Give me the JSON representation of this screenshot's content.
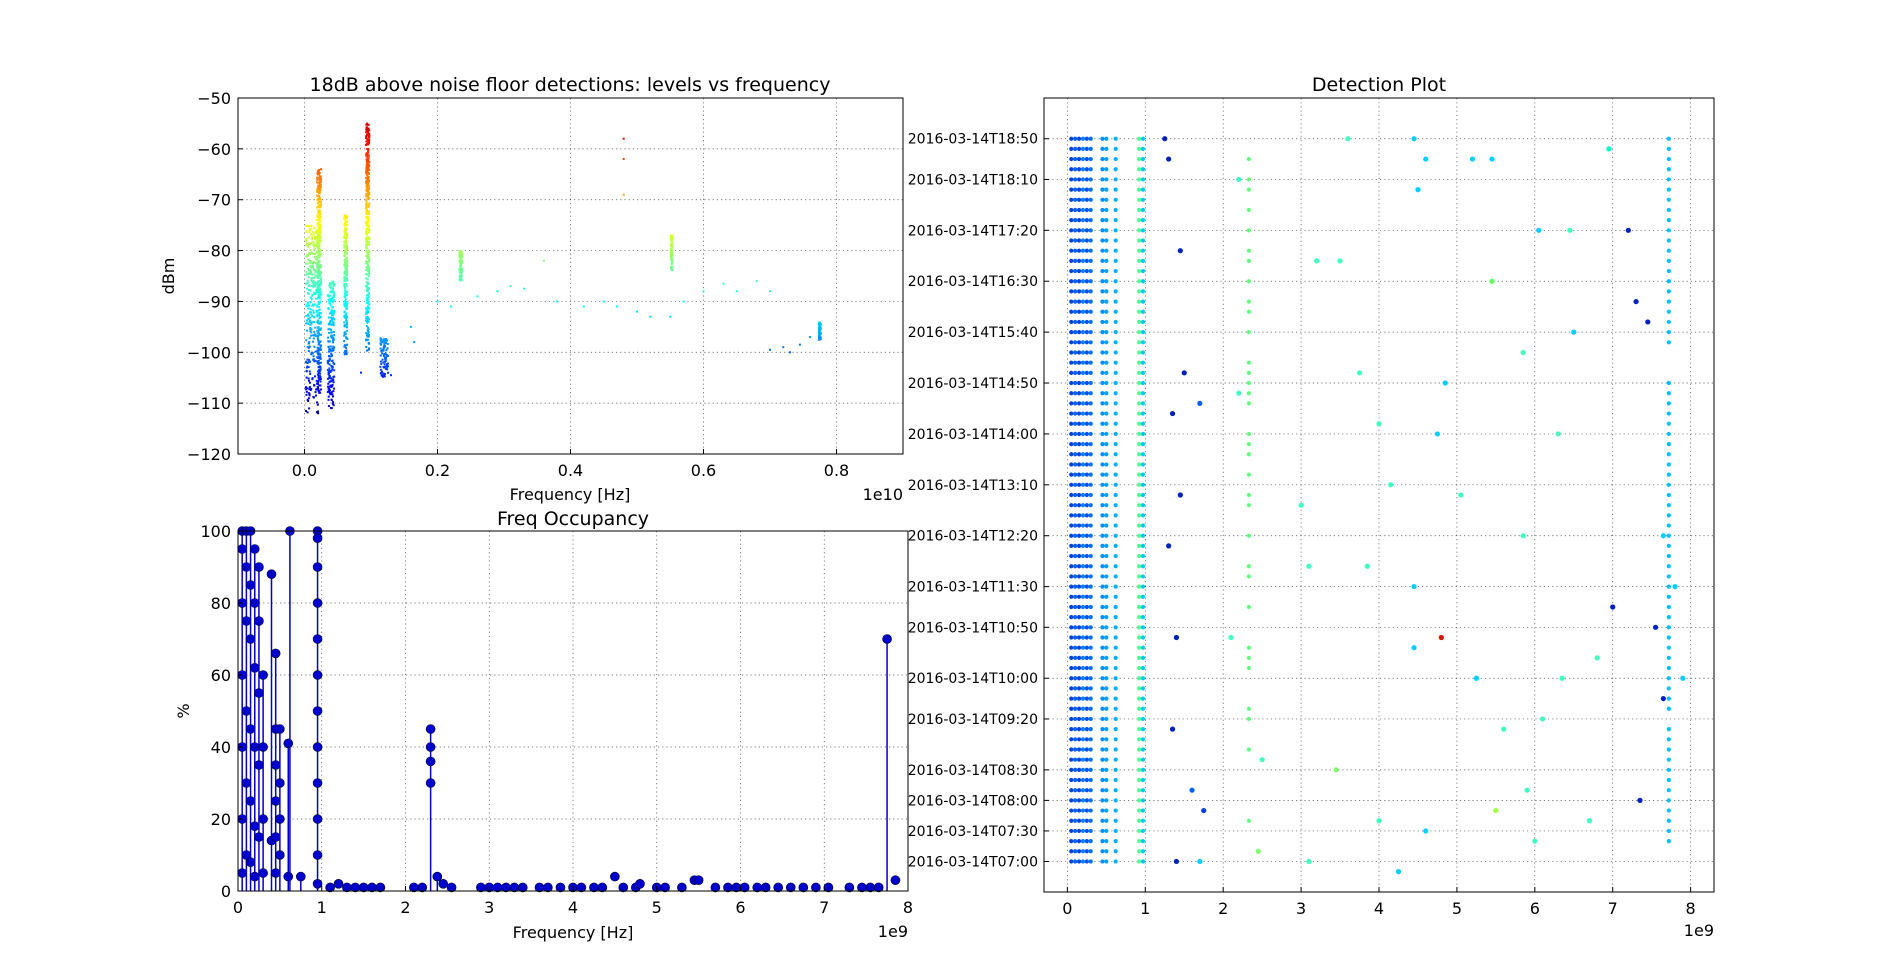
{
  "chart_data": [
    {
      "id": "levels",
      "type": "scatter",
      "title": "18dB above noise floor detections: levels vs frequency",
      "xlabel": "Frequency [Hz]",
      "ylabel": "dBm",
      "x_offset_text": "1e10",
      "xlim": [
        -0.1,
        0.9
      ],
      "ylim": [
        -120,
        -50
      ],
      "xticks": [
        0.0,
        0.2,
        0.4,
        0.6,
        0.8
      ],
      "xtick_labels": [
        "0.0",
        "0.2",
        "0.4",
        "0.6",
        "0.8"
      ],
      "yticks": [
        -120,
        -110,
        -100,
        -90,
        -80,
        -70,
        -60,
        -50
      ],
      "ytick_labels": [
        "−120",
        "−110",
        "−100",
        "−90",
        "−80",
        "−70",
        "−60",
        "−50"
      ],
      "grid": true,
      "colormap": "jet",
      "clusters": [
        {
          "x": 0.012,
          "width": 0.02,
          "y_min": -112,
          "y_max": -75
        },
        {
          "x": 0.022,
          "width": 0.006,
          "y_min": -108,
          "y_max": -64
        },
        {
          "x": 0.04,
          "width": 0.01,
          "y_min": -111,
          "y_max": -86
        },
        {
          "x": 0.062,
          "width": 0.005,
          "y_min": -101,
          "y_max": -73
        },
        {
          "x": 0.095,
          "width": 0.005,
          "y_min": -100,
          "y_max": -55
        },
        {
          "x": 0.12,
          "width": 0.012,
          "y_min": -105,
          "y_max": -97
        },
        {
          "x": 0.235,
          "width": 0.004,
          "y_min": -86,
          "y_max": -80
        },
        {
          "x": 0.552,
          "width": 0.003,
          "y_min": -84,
          "y_max": -77
        },
        {
          "x": 0.775,
          "width": 0.003,
          "y_min": -98,
          "y_max": -94
        }
      ],
      "points": [
        [
          0.48,
          -58
        ],
        [
          0.48,
          -62
        ],
        [
          0.48,
          -69
        ],
        [
          0.085,
          -104
        ],
        [
          0.13,
          -104.5
        ],
        [
          0.16,
          -95
        ],
        [
          0.165,
          -98
        ],
        [
          0.2,
          -90
        ],
        [
          0.22,
          -91
        ],
        [
          0.26,
          -89
        ],
        [
          0.29,
          -88
        ],
        [
          0.31,
          -87
        ],
        [
          0.33,
          -87.5
        ],
        [
          0.36,
          -82
        ],
        [
          0.38,
          -90
        ],
        [
          0.42,
          -91
        ],
        [
          0.45,
          -90
        ],
        [
          0.47,
          -91
        ],
        [
          0.5,
          -92
        ],
        [
          0.52,
          -93
        ],
        [
          0.55,
          -93
        ],
        [
          0.57,
          -90
        ],
        [
          0.6,
          -88
        ],
        [
          0.63,
          -86.5
        ],
        [
          0.65,
          -88
        ],
        [
          0.68,
          -86
        ],
        [
          0.7,
          -88
        ],
        [
          0.7,
          -99.5
        ],
        [
          0.72,
          -99
        ],
        [
          0.73,
          -100
        ],
        [
          0.745,
          -98.5
        ],
        [
          0.76,
          -97
        ]
      ]
    },
    {
      "id": "occupancy",
      "type": "line",
      "title": "Freq Occupancy",
      "xlabel": "Frequency [Hz]",
      "ylabel": "%",
      "x_offset_text": "1e9",
      "xlim": [
        0,
        8
      ],
      "ylim": [
        0,
        100
      ],
      "xticks": [
        0,
        1,
        2,
        3,
        4,
        5,
        6,
        7,
        8
      ],
      "xtick_labels": [
        "0",
        "1",
        "2",
        "3",
        "4",
        "5",
        "6",
        "7",
        "8"
      ],
      "yticks": [
        0,
        20,
        40,
        60,
        80,
        100
      ],
      "ytick_labels": [
        "0",
        "20",
        "40",
        "60",
        "80",
        "100"
      ],
      "grid": true,
      "color": "#0000cc",
      "stems": [
        {
          "x": 0.05,
          "values": [
            100,
            95,
            80,
            60,
            40,
            20,
            5
          ]
        },
        {
          "x": 0.1,
          "values": [
            100,
            90,
            75,
            50,
            30,
            10
          ]
        },
        {
          "x": 0.15,
          "values": [
            100,
            85,
            70,
            45,
            25,
            8
          ]
        },
        {
          "x": 0.2,
          "values": [
            95,
            80,
            62,
            40,
            18,
            4
          ]
        },
        {
          "x": 0.25,
          "values": [
            90,
            75,
            55,
            35,
            15
          ]
        },
        {
          "x": 0.3,
          "values": [
            60,
            40,
            20,
            5
          ]
        },
        {
          "x": 0.4,
          "values": [
            88,
            14
          ]
        },
        {
          "x": 0.45,
          "values": [
            66,
            45,
            35,
            25,
            15,
            5
          ]
        },
        {
          "x": 0.5,
          "values": [
            45,
            30,
            20,
            10
          ]
        },
        {
          "x": 0.6,
          "values": [
            41,
            4
          ]
        },
        {
          "x": 0.62,
          "values": [
            100
          ]
        },
        {
          "x": 0.75,
          "values": [
            4
          ]
        },
        {
          "x": 0.95,
          "values": [
            100,
            98,
            90,
            80,
            70,
            60,
            50,
            40,
            30,
            20,
            10,
            2
          ]
        },
        {
          "x": 2.3,
          "values": [
            45,
            40,
            36,
            30
          ]
        },
        {
          "x": 2.38,
          "values": [
            4
          ]
        },
        {
          "x": 7.75,
          "values": [
            70
          ]
        }
      ],
      "scatter": [
        [
          1.1,
          1
        ],
        [
          1.2,
          2
        ],
        [
          1.3,
          1
        ],
        [
          1.4,
          1
        ],
        [
          1.5,
          1
        ],
        [
          1.6,
          1
        ],
        [
          1.7,
          1
        ],
        [
          2.1,
          1
        ],
        [
          2.2,
          1
        ],
        [
          2.45,
          2
        ],
        [
          2.55,
          1
        ],
        [
          2.9,
          1
        ],
        [
          3.0,
          1
        ],
        [
          3.1,
          1
        ],
        [
          3.2,
          1
        ],
        [
          3.3,
          1
        ],
        [
          3.4,
          1
        ],
        [
          3.6,
          1
        ],
        [
          3.7,
          1
        ],
        [
          3.85,
          1
        ],
        [
          4.0,
          1
        ],
        [
          4.1,
          1
        ],
        [
          4.25,
          1
        ],
        [
          4.35,
          1
        ],
        [
          4.5,
          4
        ],
        [
          4.6,
          1
        ],
        [
          4.75,
          1
        ],
        [
          4.8,
          2
        ],
        [
          5.0,
          1
        ],
        [
          5.1,
          1
        ],
        [
          5.3,
          1
        ],
        [
          5.45,
          3
        ],
        [
          5.5,
          3
        ],
        [
          5.7,
          1
        ],
        [
          5.85,
          1
        ],
        [
          5.95,
          1
        ],
        [
          6.05,
          1
        ],
        [
          6.2,
          1
        ],
        [
          6.3,
          1
        ],
        [
          6.45,
          1
        ],
        [
          6.6,
          1
        ],
        [
          6.75,
          1
        ],
        [
          6.9,
          1
        ],
        [
          7.05,
          1
        ],
        [
          7.3,
          1
        ],
        [
          7.45,
          1
        ],
        [
          7.55,
          1
        ],
        [
          7.65,
          1
        ],
        [
          7.85,
          3
        ]
      ]
    },
    {
      "id": "detections",
      "type": "scatter",
      "title": "Detection Plot",
      "xlabel": "",
      "ylabel": "",
      "x_offset_text": "1e9",
      "xlim": [
        -0.3,
        8.3
      ],
      "xticks": [
        0,
        1,
        2,
        3,
        4,
        5,
        6,
        7,
        8
      ],
      "xtick_labels": [
        "0",
        "1",
        "2",
        "3",
        "4",
        "5",
        "6",
        "7",
        "8"
      ],
      "y_type": "time",
      "yticks": [
        "2016-03-14T07:00",
        "2016-03-14T07:30",
        "2016-03-14T08:00",
        "2016-03-14T08:30",
        "2016-03-14T09:20",
        "2016-03-14T10:00",
        "2016-03-14T10:50",
        "2016-03-14T11:30",
        "2016-03-14T12:20",
        "2016-03-14T13:10",
        "2016-03-14T14:00",
        "2016-03-14T14:50",
        "2016-03-14T15:40",
        "2016-03-14T16:30",
        "2016-03-14T17:20",
        "2016-03-14T18:10",
        "2016-03-14T18:50"
      ],
      "grid": true,
      "colormap": "jet",
      "columns": [
        {
          "x": 0.05,
          "color": "#0044dd"
        },
        {
          "x": 0.1,
          "color": "#0060ff"
        },
        {
          "x": 0.15,
          "color": "#0044dd"
        },
        {
          "x": 0.2,
          "color": "#0080ff"
        },
        {
          "x": 0.25,
          "color": "#0050ee"
        },
        {
          "x": 0.3,
          "color": "#0070ff"
        },
        {
          "x": 0.45,
          "color": "#0090ff"
        },
        {
          "x": 0.5,
          "color": "#00a0ff"
        },
        {
          "x": 0.62,
          "color": "#00b0ff"
        },
        {
          "x": 0.92,
          "color": "#50ff90"
        },
        {
          "x": 0.97,
          "color": "#00c8ff"
        },
        {
          "x": 2.33,
          "color": "#60ff80",
          "partial": true
        },
        {
          "x": 7.72,
          "color": "#00bfff"
        }
      ],
      "points": [
        [
          1.25,
          "2016-03-14T18:50",
          "#0020c0"
        ],
        [
          1.3,
          "2016-03-14T18:30",
          "#0020c0"
        ],
        [
          2.2,
          "2016-03-14T18:10",
          "#40ffc0"
        ],
        [
          3.6,
          "2016-03-14T18:50",
          "#40ffc0"
        ],
        [
          4.45,
          "2016-03-14T18:50",
          "#00d0ff"
        ],
        [
          4.6,
          "2016-03-14T18:30",
          "#00d0ff"
        ],
        [
          4.5,
          "2016-03-14T18:00",
          "#00d0ff"
        ],
        [
          5.2,
          "2016-03-14T18:30",
          "#00d0ff"
        ],
        [
          5.45,
          "2016-03-14T18:30",
          "#00d0ff"
        ],
        [
          6.95,
          "2016-03-14T18:40",
          "#00ffc0"
        ],
        [
          7.2,
          "2016-03-14T17:20",
          "#0020c0"
        ],
        [
          6.05,
          "2016-03-14T17:20",
          "#00d0ff"
        ],
        [
          6.45,
          "2016-03-14T17:20",
          "#40ffc0"
        ],
        [
          3.2,
          "2016-03-14T16:50",
          "#40ffc0"
        ],
        [
          3.5,
          "2016-03-14T16:50",
          "#40ffc0"
        ],
        [
          5.45,
          "2016-03-14T16:30",
          "#60ff60"
        ],
        [
          1.45,
          "2016-03-14T17:00",
          "#0020c0"
        ],
        [
          7.3,
          "2016-03-14T16:10",
          "#0020c0"
        ],
        [
          7.45,
          "2016-03-14T15:50",
          "#0020c0"
        ],
        [
          6.5,
          "2016-03-14T15:40",
          "#00d0ff"
        ],
        [
          1.5,
          "2016-03-14T15:00",
          "#0020c0"
        ],
        [
          3.75,
          "2016-03-14T15:00",
          "#40ffc0"
        ],
        [
          5.85,
          "2016-03-14T15:20",
          "#40ffc0"
        ],
        [
          4.85,
          "2016-03-14T14:50",
          "#00d0ff"
        ],
        [
          1.7,
          "2016-03-14T14:30",
          "#0060ff"
        ],
        [
          2.2,
          "2016-03-14T14:40",
          "#40ffc0"
        ],
        [
          4.0,
          "2016-03-14T14:10",
          "#40ffc0"
        ],
        [
          4.75,
          "2016-03-14T14:00",
          "#00d0ff"
        ],
        [
          6.3,
          "2016-03-14T14:00",
          "#40ffc0"
        ],
        [
          1.35,
          "2016-03-14T14:20",
          "#0020c0"
        ],
        [
          1.45,
          "2016-03-14T13:00",
          "#0020c0"
        ],
        [
          4.15,
          "2016-03-14T13:10",
          "#40ffc0"
        ],
        [
          5.05,
          "2016-03-14T13:00",
          "#40ffc0"
        ],
        [
          3.0,
          "2016-03-14T12:50",
          "#40ffc0"
        ],
        [
          5.85,
          "2016-03-14T12:20",
          "#40ffc0"
        ],
        [
          7.65,
          "2016-03-14T12:20",
          "#00d0ff"
        ],
        [
          1.3,
          "2016-03-14T12:10",
          "#0020c0"
        ],
        [
          4.45,
          "2016-03-14T11:30",
          "#00d0ff"
        ],
        [
          3.1,
          "2016-03-14T11:50",
          "#40ffc0"
        ],
        [
          3.85,
          "2016-03-14T11:50",
          "#40ffc0"
        ],
        [
          7.0,
          "2016-03-14T11:10",
          "#0020c0"
        ],
        [
          7.55,
          "2016-03-14T10:50",
          "#0020c0"
        ],
        [
          7.8,
          "2016-03-14T11:30",
          "#00d0ff"
        ],
        [
          1.4,
          "2016-03-14T10:40",
          "#0020c0"
        ],
        [
          4.8,
          "2016-03-14T10:40",
          "#e01000"
        ],
        [
          4.45,
          "2016-03-14T10:30",
          "#00d0ff"
        ],
        [
          2.1,
          "2016-03-14T10:40",
          "#40ffc0"
        ],
        [
          5.25,
          "2016-03-14T10:00",
          "#00d0ff"
        ],
        [
          6.35,
          "2016-03-14T10:00",
          "#40ffc0"
        ],
        [
          6.8,
          "2016-03-14T10:20",
          "#40ffc0"
        ],
        [
          7.9,
          "2016-03-14T10:00",
          "#00d0ff"
        ],
        [
          7.65,
          "2016-03-14T09:40",
          "#0020c0"
        ],
        [
          6.1,
          "2016-03-14T09:20",
          "#40ffc0"
        ],
        [
          5.6,
          "2016-03-14T09:10",
          "#40ffc0"
        ],
        [
          1.35,
          "2016-03-14T09:10",
          "#0020c0"
        ],
        [
          2.5,
          "2016-03-14T08:40",
          "#40ffc0"
        ],
        [
          3.45,
          "2016-03-14T08:30",
          "#80ff70"
        ],
        [
          1.6,
          "2016-03-14T08:10",
          "#0060ff"
        ],
        [
          5.5,
          "2016-03-14T07:50",
          "#a0ff40"
        ],
        [
          7.35,
          "2016-03-14T08:00",
          "#0020c0"
        ],
        [
          5.9,
          "2016-03-14T08:10",
          "#40ffc0"
        ],
        [
          1.75,
          "2016-03-14T07:50",
          "#0040e0"
        ],
        [
          4.0,
          "2016-03-14T07:40",
          "#40ffc0"
        ],
        [
          4.6,
          "2016-03-14T07:30",
          "#00d0ff"
        ],
        [
          6.7,
          "2016-03-14T07:40",
          "#40ffc0"
        ],
        [
          2.45,
          "2016-03-14T07:10",
          "#80ff70"
        ],
        [
          1.4,
          "2016-03-14T07:00",
          "#0020c0"
        ],
        [
          1.7,
          "2016-03-14T07:00",
          "#00d0ff"
        ],
        [
          3.1,
          "2016-03-14T07:00",
          "#40ffc0"
        ],
        [
          4.25,
          "2016-03-14T06:50",
          "#00d0ff"
        ],
        [
          6.0,
          "2016-03-14T07:20",
          "#40ffc0"
        ]
      ]
    }
  ]
}
